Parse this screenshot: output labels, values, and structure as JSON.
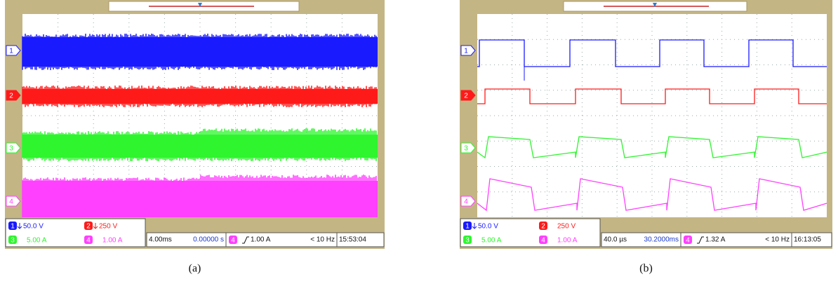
{
  "panels": [
    {
      "caption": "(a)",
      "channels": [
        "1",
        "2",
        "3",
        "4"
      ],
      "scales": [
        "50.0 V",
        "250 V",
        "5.00 A",
        "1.00 A"
      ],
      "timebase": "4.00ms",
      "delay": "0.00000 s",
      "trigger_channel": "4",
      "trigger_level": "1.00 A",
      "frequency": "< 10 Hz",
      "clock": "15:53:04"
    },
    {
      "caption": "(b)",
      "channels": [
        "1",
        "2",
        "3",
        "4"
      ],
      "scales": [
        "50.0 V",
        "250 V",
        "5.00 A",
        "1.00 A"
      ],
      "timebase": "40.0 µs",
      "delay": "30.2000ms",
      "trigger_channel": "4",
      "trigger_level": "1.32 A",
      "frequency": "< 10 Hz",
      "clock": "16:13:05"
    }
  ]
}
